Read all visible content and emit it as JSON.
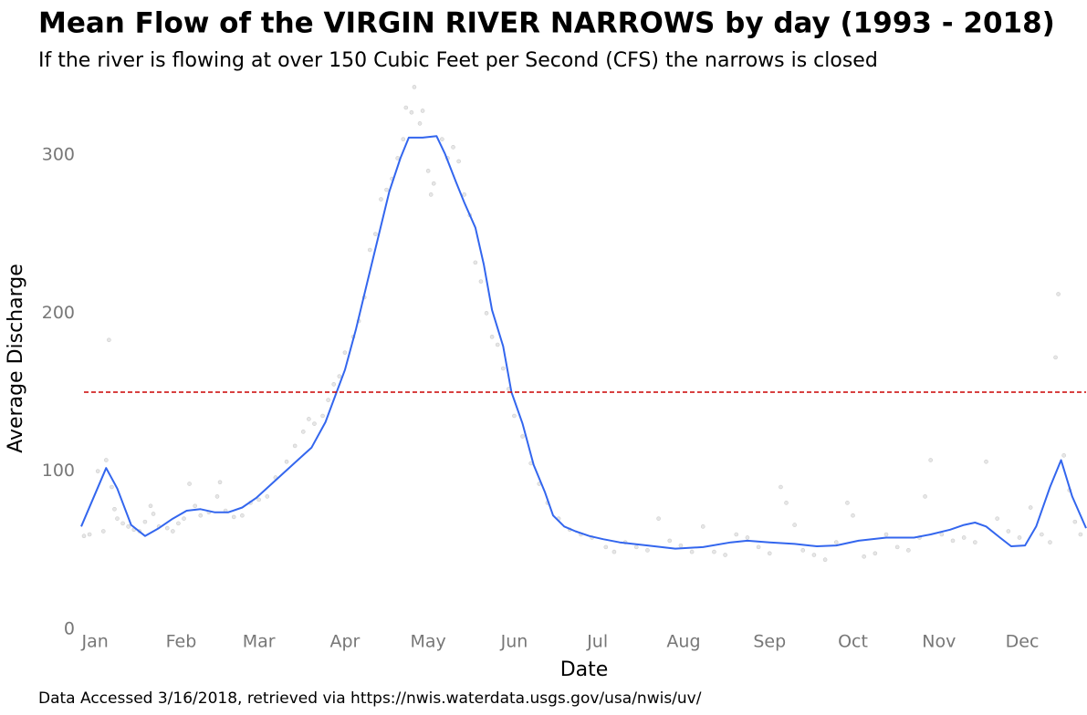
{
  "chart_data": {
    "type": "line",
    "title": "Mean Flow of the VIRGIN RIVER NARROWS by day (1993 - 2018)",
    "subtitle": "If the river is flowing at over 150 Cubic Feet per Second (CFS) the narrows is closed",
    "x_label": "Date",
    "y_label": "Average Discharge",
    "caption": "Data Accessed 3/16/2018, retrieved via https://nwis.waterdata.usgs.gov/usa/nwis/uv/",
    "xlim": [
      -3,
      358
    ],
    "ylim": [
      0,
      345
    ],
    "xticks": [
      {
        "value": 1,
        "label": "Jan"
      },
      {
        "value": 32,
        "label": "Feb"
      },
      {
        "value": 60,
        "label": "Mar"
      },
      {
        "value": 91,
        "label": "Apr"
      },
      {
        "value": 121,
        "label": "May"
      },
      {
        "value": 152,
        "label": "Jun"
      },
      {
        "value": 182,
        "label": "Jul"
      },
      {
        "value": 213,
        "label": "Aug"
      },
      {
        "value": 244,
        "label": "Sep"
      },
      {
        "value": 274,
        "label": "Oct"
      },
      {
        "value": 305,
        "label": "Nov"
      },
      {
        "value": 335,
        "label": "Dec"
      }
    ],
    "yticks": [
      0,
      100,
      200,
      300
    ],
    "grid": false,
    "threshold": 150,
    "threshold_color": "#cc0000",
    "series": [
      {
        "type": "scatter",
        "color": "#cccccc",
        "x": [
          -3,
          -1,
          2,
          4,
          5,
          6,
          7,
          8,
          9,
          11,
          13,
          15,
          17,
          19,
          21,
          22,
          24,
          27,
          29,
          31,
          33,
          35,
          37,
          39,
          42,
          45,
          46,
          48,
          51,
          54,
          57,
          60,
          63,
          66,
          70,
          73,
          76,
          78,
          80,
          83,
          85,
          87,
          89,
          91,
          94,
          96,
          98,
          100,
          102,
          104,
          106,
          108,
          110,
          112,
          113,
          115,
          116,
          118,
          119,
          121,
          122,
          123,
          126,
          128,
          130,
          132,
          134,
          136,
          138,
          140,
          142,
          144,
          146,
          148,
          150,
          152,
          155,
          158,
          161,
          164,
          168,
          172,
          176,
          180,
          185,
          188,
          192,
          196,
          200,
          204,
          208,
          212,
          216,
          220,
          224,
          228,
          232,
          236,
          240,
          244,
          248,
          250,
          253,
          256,
          260,
          264,
          268,
          272,
          274,
          278,
          282,
          286,
          290,
          294,
          298,
          300,
          302,
          306,
          310,
          314,
          318,
          322,
          326,
          330,
          334,
          338,
          342,
          345,
          347,
          348,
          350,
          352,
          354,
          356
        ],
        "values": [
          59,
          60,
          100,
          62,
          107,
          183,
          90,
          76,
          70,
          67,
          65,
          63,
          62,
          68,
          78,
          73,
          65,
          64,
          62,
          67,
          70,
          92,
          78,
          72,
          74,
          84,
          93,
          75,
          71,
          72,
          80,
          82,
          84,
          96,
          106,
          116,
          125,
          133,
          130,
          135,
          145,
          155,
          160,
          175,
          185,
          195,
          210,
          240,
          250,
          272,
          278,
          285,
          298,
          310,
          330,
          327,
          343,
          320,
          328,
          290,
          275,
          282,
          310,
          298,
          305,
          296,
          275,
          262,
          232,
          220,
          200,
          185,
          180,
          165,
          152,
          135,
          122,
          105,
          92,
          80,
          70,
          63,
          60,
          58,
          52,
          49,
          55,
          52,
          50,
          70,
          56,
          53,
          49,
          65,
          49,
          47,
          60,
          58,
          52,
          48,
          90,
          80,
          66,
          50,
          47,
          44,
          55,
          80,
          72,
          46,
          48,
          60,
          52,
          50,
          58,
          84,
          107,
          60,
          56,
          58,
          55,
          106,
          70,
          62,
          58,
          77,
          60,
          55,
          172,
          212,
          110,
          88,
          68,
          60
        ]
      },
      {
        "type": "line",
        "color": "#3366ee",
        "x": [
          -4,
          5,
          9,
          14,
          19,
          24,
          29,
          34,
          39,
          44,
          49,
          54,
          59,
          64,
          69,
          74,
          79,
          84,
          88,
          91,
          95,
          99,
          103,
          107,
          111,
          114,
          119,
          124,
          127,
          131,
          134,
          138,
          141,
          144,
          148,
          151,
          155,
          159,
          163,
          166,
          170,
          174,
          179,
          184,
          190,
          200,
          210,
          220,
          230,
          236,
          244,
          253,
          261,
          268,
          276,
          286,
          296,
          302,
          309,
          314,
          318,
          322,
          327,
          331,
          336,
          340,
          345,
          349,
          353,
          358
        ],
        "values": [
          65,
          102,
          89,
          66,
          59,
          64,
          70,
          75,
          76,
          74,
          74,
          77,
          83,
          91,
          99,
          107,
          115,
          131,
          150,
          164,
          190,
          219,
          248,
          277,
          298,
          311,
          311,
          312,
          301,
          283,
          270,
          254,
          231,
          202,
          179,
          150,
          130,
          104,
          87,
          72,
          65,
          62,
          59,
          57,
          55,
          53,
          51,
          52,
          55,
          56,
          55,
          54,
          52.5,
          53,
          56,
          58,
          58,
          60,
          63,
          66,
          67.5,
          65,
          58,
          52.5,
          53,
          65,
          90,
          107,
          84,
          64
        ]
      }
    ]
  }
}
